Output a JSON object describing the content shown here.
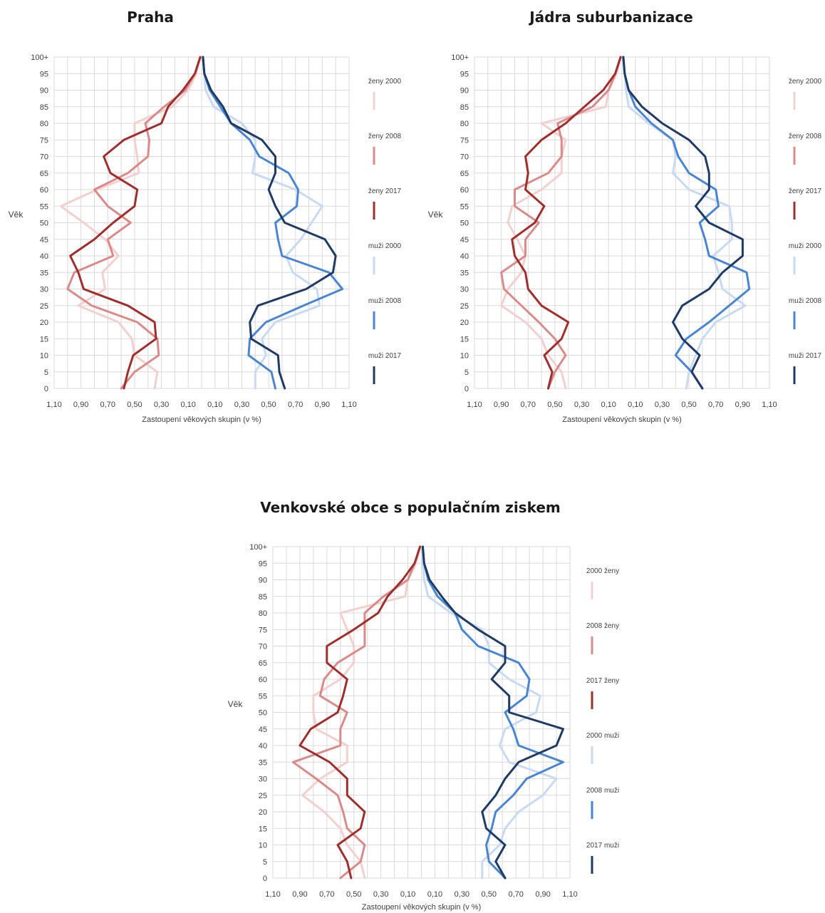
{
  "chart_data": [
    {
      "type": "line",
      "title": "Praha",
      "ylabel": "Věk",
      "xlabel": "Zastoupení věkových skupin (v  %)",
      "x_ticks": [
        "1,10",
        "0,90",
        "0,70",
        "0,50",
        "0,30",
        "0,10",
        "0,10",
        "0,30",
        "0,50",
        "0,70",
        "0,90",
        "1,10"
      ],
      "y_ticks": [
        "0",
        "5",
        "10",
        "15",
        "20",
        "25",
        "30",
        "35",
        "40",
        "45",
        "50",
        "55",
        "60",
        "65",
        "70",
        "75",
        "80",
        "85",
        "90",
        "95",
        "100+"
      ],
      "xlim": [
        -1.1,
        1.1
      ],
      "ylim": [
        0,
        100
      ],
      "grid": true,
      "legend": "right",
      "series": [
        {
          "name": "ženy 2000",
          "color": "#f2d0cf",
          "ages": [
            0,
            5,
            10,
            15,
            20,
            25,
            30,
            35,
            40,
            45,
            50,
            55,
            60,
            65,
            70,
            75,
            80,
            85,
            90,
            95,
            100
          ],
          "values": [
            -0.35,
            -0.33,
            -0.5,
            -0.52,
            -0.62,
            -0.92,
            -0.72,
            -0.74,
            -0.62,
            -0.72,
            -0.88,
            -1.05,
            -0.78,
            -0.47,
            -0.48,
            -0.5,
            -0.5,
            -0.22,
            -0.1,
            -0.04,
            -0.01
          ]
        },
        {
          "name": "ženy 2008",
          "color": "#d98b8a",
          "ages": [
            0,
            5,
            10,
            15,
            20,
            25,
            30,
            35,
            40,
            45,
            50,
            55,
            60,
            65,
            70,
            75,
            80,
            85,
            90,
            95,
            100
          ],
          "values": [
            -0.6,
            -0.5,
            -0.32,
            -0.33,
            -0.48,
            -0.82,
            -1.0,
            -0.95,
            -0.66,
            -0.7,
            -0.53,
            -0.7,
            -0.8,
            -0.55,
            -0.4,
            -0.39,
            -0.42,
            -0.28,
            -0.12,
            -0.05,
            -0.01
          ]
        },
        {
          "name": "ženy 2017",
          "color": "#9e2f2d",
          "ages": [
            0,
            5,
            10,
            15,
            20,
            25,
            30,
            35,
            40,
            45,
            50,
            55,
            60,
            65,
            70,
            75,
            80,
            85,
            90,
            95,
            100
          ],
          "values": [
            -0.58,
            -0.55,
            -0.51,
            -0.34,
            -0.35,
            -0.55,
            -0.88,
            -0.92,
            -0.98,
            -0.8,
            -0.66,
            -0.5,
            -0.48,
            -0.68,
            -0.73,
            -0.58,
            -0.3,
            -0.25,
            -0.14,
            -0.05,
            -0.01
          ]
        },
        {
          "name": "muži 2000",
          "color": "#c9daf0",
          "ages": [
            0,
            5,
            10,
            15,
            20,
            25,
            30,
            35,
            40,
            45,
            50,
            55,
            60,
            65,
            70,
            75,
            80,
            85,
            90,
            95,
            100
          ],
          "values": [
            0.4,
            0.4,
            0.48,
            0.45,
            0.55,
            0.88,
            0.86,
            0.68,
            0.63,
            0.74,
            0.82,
            0.9,
            0.7,
            0.38,
            0.4,
            0.4,
            0.3,
            0.09,
            0.03,
            0.02,
            0.01
          ]
        },
        {
          "name": "muži 2008",
          "color": "#4a86d0",
          "ages": [
            0,
            5,
            10,
            15,
            20,
            25,
            30,
            35,
            40,
            45,
            50,
            55,
            60,
            65,
            70,
            75,
            80,
            85,
            90,
            95,
            100
          ],
          "values": [
            0.55,
            0.52,
            0.35,
            0.36,
            0.48,
            0.76,
            1.05,
            0.95,
            0.6,
            0.57,
            0.55,
            0.71,
            0.72,
            0.65,
            0.43,
            0.36,
            0.22,
            0.14,
            0.06,
            0.02,
            0.01
          ]
        },
        {
          "name": "muži 2017",
          "color": "#1f3b64",
          "ages": [
            0,
            5,
            10,
            15,
            20,
            25,
            30,
            35,
            40,
            45,
            50,
            55,
            60,
            65,
            70,
            75,
            80,
            85,
            90,
            95,
            100
          ],
          "values": [
            0.62,
            0.58,
            0.57,
            0.37,
            0.36,
            0.42,
            0.78,
            0.98,
            1.0,
            0.92,
            0.62,
            0.55,
            0.5,
            0.55,
            0.55,
            0.45,
            0.22,
            0.16,
            0.07,
            0.02,
            0.01
          ]
        }
      ]
    },
    {
      "type": "line",
      "title": "Jádra suburbanizace",
      "ylabel": "Věk",
      "xlabel": "Zastoupení věkových skupin (v %)",
      "x_ticks": [
        "1,10",
        "0,90",
        "0,70",
        "0,50",
        "0,30",
        "0,10",
        "0,10",
        "0,30",
        "0,50",
        "0,70",
        "0,90",
        "1,10"
      ],
      "y_ticks": [
        "0",
        "5",
        "10",
        "15",
        "20",
        "25",
        "30",
        "35",
        "40",
        "45",
        "50",
        "55",
        "60",
        "65",
        "70",
        "75",
        "80",
        "85",
        "90",
        "95",
        "100+"
      ],
      "xlim": [
        -1.1,
        1.1
      ],
      "ylim": [
        0,
        100
      ],
      "grid": true,
      "legend": "right",
      "series": [
        {
          "name": "ženy 2000",
          "color": "#f2d0cf",
          "ages": [
            0,
            5,
            10,
            15,
            20,
            25,
            30,
            35,
            40,
            45,
            50,
            55,
            60,
            65,
            70,
            75,
            80,
            85,
            90,
            95,
            100
          ],
          "values": [
            -0.42,
            -0.45,
            -0.55,
            -0.6,
            -0.72,
            -0.9,
            -0.85,
            -0.75,
            -0.72,
            -0.78,
            -0.85,
            -0.82,
            -0.6,
            -0.45,
            -0.45,
            -0.42,
            -0.6,
            -0.12,
            -0.1,
            -0.04,
            -0.01
          ]
        },
        {
          "name": "ženy 2008",
          "color": "#d98b8a",
          "ages": [
            0,
            5,
            10,
            15,
            20,
            25,
            30,
            35,
            40,
            45,
            50,
            55,
            60,
            65,
            70,
            75,
            80,
            85,
            90,
            95,
            100
          ],
          "values": [
            -0.55,
            -0.5,
            -0.42,
            -0.5,
            -0.62,
            -0.75,
            -0.88,
            -0.9,
            -0.72,
            -0.72,
            -0.62,
            -0.8,
            -0.8,
            -0.55,
            -0.45,
            -0.45,
            -0.48,
            -0.22,
            -0.1,
            -0.05,
            -0.01
          ]
        },
        {
          "name": "ženy 2017",
          "color": "#9e2f2d",
          "ages": [
            0,
            5,
            10,
            15,
            20,
            25,
            30,
            35,
            40,
            45,
            50,
            55,
            60,
            65,
            70,
            75,
            80,
            85,
            90,
            95,
            100
          ],
          "values": [
            -0.55,
            -0.52,
            -0.58,
            -0.45,
            -0.4,
            -0.6,
            -0.7,
            -0.72,
            -0.8,
            -0.82,
            -0.65,
            -0.58,
            -0.72,
            -0.7,
            -0.72,
            -0.6,
            -0.42,
            -0.28,
            -0.14,
            -0.05,
            -0.01
          ]
        },
        {
          "name": "muži 2000",
          "color": "#c9daf0",
          "ages": [
            0,
            5,
            10,
            15,
            20,
            25,
            30,
            35,
            40,
            45,
            50,
            55,
            60,
            65,
            70,
            75,
            80,
            85,
            90,
            95,
            100
          ],
          "values": [
            0.48,
            0.5,
            0.55,
            0.6,
            0.7,
            0.92,
            0.75,
            0.72,
            0.68,
            0.82,
            0.82,
            0.8,
            0.5,
            0.38,
            0.4,
            0.38,
            0.2,
            0.05,
            0.03,
            0.02,
            0.01
          ]
        },
        {
          "name": "muži 2008",
          "color": "#4a86d0",
          "ages": [
            0,
            5,
            10,
            15,
            20,
            25,
            30,
            35,
            40,
            45,
            50,
            55,
            60,
            65,
            70,
            75,
            80,
            85,
            90,
            95,
            100
          ],
          "values": [
            0.6,
            0.52,
            0.4,
            0.48,
            0.65,
            0.8,
            0.95,
            0.93,
            0.65,
            0.62,
            0.58,
            0.72,
            0.7,
            0.5,
            0.42,
            0.38,
            0.22,
            0.1,
            0.05,
            0.02,
            0.01
          ]
        },
        {
          "name": "muži 2017",
          "color": "#1f3b64",
          "ages": [
            0,
            5,
            10,
            15,
            20,
            25,
            30,
            35,
            40,
            45,
            50,
            55,
            60,
            65,
            70,
            75,
            80,
            85,
            90,
            95,
            100
          ],
          "values": [
            0.6,
            0.52,
            0.58,
            0.45,
            0.38,
            0.45,
            0.65,
            0.75,
            0.9,
            0.9,
            0.65,
            0.55,
            0.65,
            0.65,
            0.62,
            0.5,
            0.3,
            0.15,
            0.05,
            0.02,
            0.01
          ]
        }
      ]
    },
    {
      "type": "line",
      "title": "Venkovské obce s populačním ziskem",
      "ylabel": "Věk",
      "xlabel": "Zastoupení věkových skupin (v %)",
      "x_ticks": [
        "1,10",
        "0,90",
        "0,70",
        "0,50",
        "0,30",
        "0,10",
        "0,10",
        "0,30",
        "0,50",
        "0,70",
        "0,90",
        "1,10"
      ],
      "y_ticks": [
        "0",
        "5",
        "10",
        "15",
        "20",
        "25",
        "30",
        "35",
        "40",
        "45",
        "50",
        "55",
        "60",
        "65",
        "70",
        "75",
        "80",
        "85",
        "90",
        "95",
        "100+"
      ],
      "xlim": [
        -1.1,
        1.1
      ],
      "ylim": [
        0,
        100
      ],
      "grid": true,
      "legend": "right",
      "series": [
        {
          "name": "2000  ženy",
          "color": "#f2d0cf",
          "ages": [
            0,
            5,
            10,
            15,
            20,
            25,
            30,
            35,
            40,
            45,
            50,
            55,
            60,
            65,
            70,
            75,
            80,
            85,
            90,
            95,
            100
          ],
          "values": [
            -0.42,
            -0.45,
            -0.55,
            -0.6,
            -0.72,
            -0.88,
            -0.75,
            -0.55,
            -0.55,
            -0.78,
            -0.8,
            -0.8,
            -0.6,
            -0.5,
            -0.5,
            -0.55,
            -0.6,
            -0.12,
            -0.1,
            -0.04,
            -0.01
          ]
        },
        {
          "name": "2008  ženy",
          "color": "#d98b8a",
          "ages": [
            0,
            5,
            10,
            15,
            20,
            25,
            30,
            35,
            40,
            45,
            50,
            55,
            60,
            65,
            70,
            75,
            80,
            85,
            90,
            95,
            100
          ],
          "values": [
            -0.6,
            -0.45,
            -0.42,
            -0.55,
            -0.58,
            -0.62,
            -0.78,
            -0.95,
            -0.6,
            -0.6,
            -0.55,
            -0.75,
            -0.72,
            -0.62,
            -0.42,
            -0.42,
            -0.42,
            -0.28,
            -0.1,
            -0.05,
            -0.01
          ]
        },
        {
          "name": "2017  ženy",
          "color": "#9e2f2d",
          "ages": [
            0,
            5,
            10,
            15,
            20,
            25,
            30,
            35,
            40,
            45,
            50,
            55,
            60,
            65,
            70,
            75,
            80,
            85,
            90,
            95,
            100
          ],
          "values": [
            -0.52,
            -0.55,
            -0.62,
            -0.45,
            -0.42,
            -0.55,
            -0.55,
            -0.68,
            -0.9,
            -0.82,
            -0.62,
            -0.58,
            -0.55,
            -0.7,
            -0.7,
            -0.5,
            -0.32,
            -0.25,
            -0.14,
            -0.05,
            -0.01
          ]
        },
        {
          "name": "2000  muži",
          "color": "#c9daf0",
          "ages": [
            0,
            5,
            10,
            15,
            20,
            25,
            30,
            35,
            40,
            45,
            50,
            55,
            60,
            65,
            70,
            75,
            80,
            85,
            90,
            95,
            100
          ],
          "values": [
            0.45,
            0.45,
            0.58,
            0.62,
            0.72,
            0.9,
            1.0,
            0.65,
            0.58,
            0.62,
            0.85,
            0.88,
            0.65,
            0.5,
            0.5,
            0.45,
            0.22,
            0.05,
            0.02,
            0.01,
            0.01
          ]
        },
        {
          "name": "2008  muži",
          "color": "#4a86d0",
          "ages": [
            0,
            5,
            10,
            15,
            20,
            25,
            30,
            35,
            40,
            45,
            50,
            55,
            60,
            65,
            70,
            75,
            80,
            85,
            90,
            95,
            100
          ],
          "values": [
            0.62,
            0.5,
            0.48,
            0.52,
            0.55,
            0.68,
            0.78,
            1.05,
            0.72,
            0.68,
            0.62,
            0.78,
            0.8,
            0.72,
            0.42,
            0.3,
            0.25,
            0.12,
            0.05,
            0.02,
            0.01
          ]
        },
        {
          "name": "2017  muži",
          "color": "#1f3b64",
          "ages": [
            0,
            5,
            10,
            15,
            20,
            25,
            30,
            35,
            40,
            45,
            50,
            55,
            60,
            65,
            70,
            75,
            80,
            85,
            90,
            95,
            100
          ],
          "values": [
            0.62,
            0.55,
            0.62,
            0.48,
            0.45,
            0.55,
            0.62,
            0.72,
            1.0,
            1.05,
            0.65,
            0.65,
            0.52,
            0.62,
            0.62,
            0.42,
            0.25,
            0.15,
            0.06,
            0.02,
            0.01
          ]
        }
      ]
    }
  ]
}
